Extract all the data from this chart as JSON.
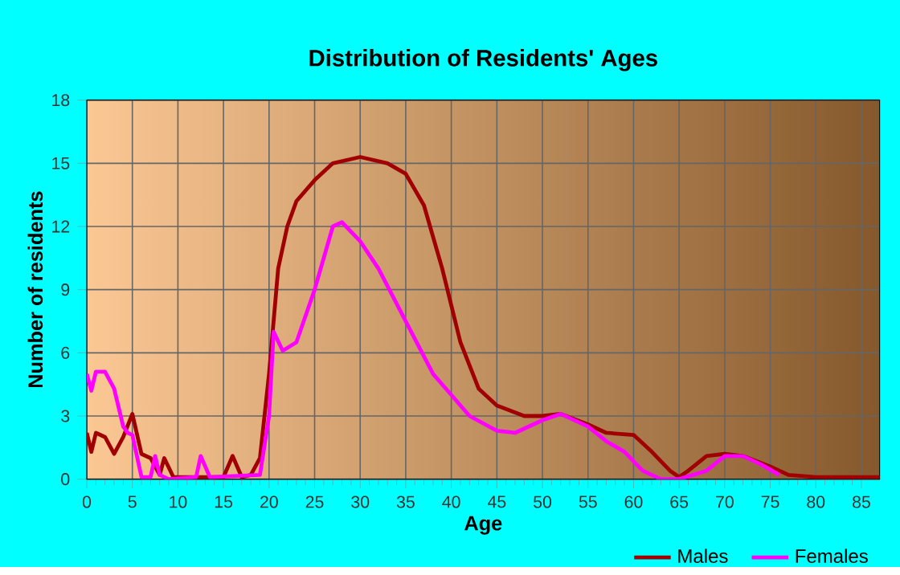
{
  "chart_data": {
    "type": "line",
    "title": "Distribution of Residents' Ages",
    "xlabel": "Age",
    "ylabel": "Number of residents",
    "xlim": [
      0,
      87
    ],
    "xticks": [
      0,
      5,
      10,
      15,
      20,
      25,
      30,
      35,
      40,
      45,
      50,
      55,
      60,
      65,
      70,
      75,
      80,
      85
    ],
    "ylim": [
      0,
      18
    ],
    "yticks": [
      0,
      3,
      6,
      9,
      12,
      15,
      18
    ],
    "grid": true,
    "legend": "bottom right",
    "marker": "none",
    "line_style": "solid",
    "series": [
      {
        "name": "Males",
        "color": "#a00000",
        "x": [
          0,
          0.5,
          1,
          2,
          3,
          4,
          5,
          6,
          7,
          8,
          8.5,
          9.5,
          10,
          15,
          16,
          17,
          18,
          19,
          20,
          21,
          22,
          23,
          25,
          27,
          30,
          33,
          35,
          37,
          39,
          41,
          43,
          45,
          48,
          50,
          52,
          55,
          57,
          60,
          62,
          64,
          65,
          66,
          68,
          70,
          72,
          75,
          77,
          80,
          83,
          87
        ],
        "values": [
          2.2,
          1.3,
          2.2,
          2.0,
          1.2,
          2.0,
          3.1,
          1.2,
          1.0,
          0.2,
          1.0,
          0.1,
          0.1,
          0.1,
          1.1,
          0.1,
          0.2,
          1.0,
          5,
          10,
          12,
          13.2,
          14.2,
          15,
          15.3,
          15,
          14.5,
          13,
          10,
          6.5,
          4.3,
          3.5,
          3,
          3,
          3.1,
          2.6,
          2.2,
          2.1,
          1.3,
          0.4,
          0.1,
          0.4,
          1.1,
          1.2,
          1.1,
          0.6,
          0.2,
          0.1,
          0.1,
          0.1
        ]
      },
      {
        "name": "Females",
        "color": "#ff00ff",
        "x": [
          0,
          0.5,
          1,
          2,
          3,
          4,
          4.5,
          5,
          6,
          7,
          7.5,
          8,
          9,
          12,
          12.5,
          13.5,
          19,
          20,
          20.5,
          21.5,
          23,
          25,
          27,
          28,
          30,
          32,
          35,
          38,
          40,
          42,
          45,
          47,
          50,
          52,
          55,
          57,
          59,
          61,
          63,
          65,
          68,
          70,
          72,
          74,
          76
        ],
        "values": [
          5,
          4.2,
          5.1,
          5.1,
          4.3,
          2.5,
          2.2,
          2.1,
          0.1,
          0.1,
          1.1,
          0.2,
          0,
          0.1,
          1.1,
          0.1,
          0.2,
          3,
          7,
          6.1,
          6.5,
          9,
          12,
          12.2,
          11.3,
          10,
          7.5,
          5,
          4,
          3,
          2.3,
          2.2,
          2.8,
          3.1,
          2.5,
          1.8,
          1.3,
          0.4,
          0,
          0,
          0.4,
          1.1,
          1.1,
          0.7,
          0.2
        ]
      }
    ]
  }
}
